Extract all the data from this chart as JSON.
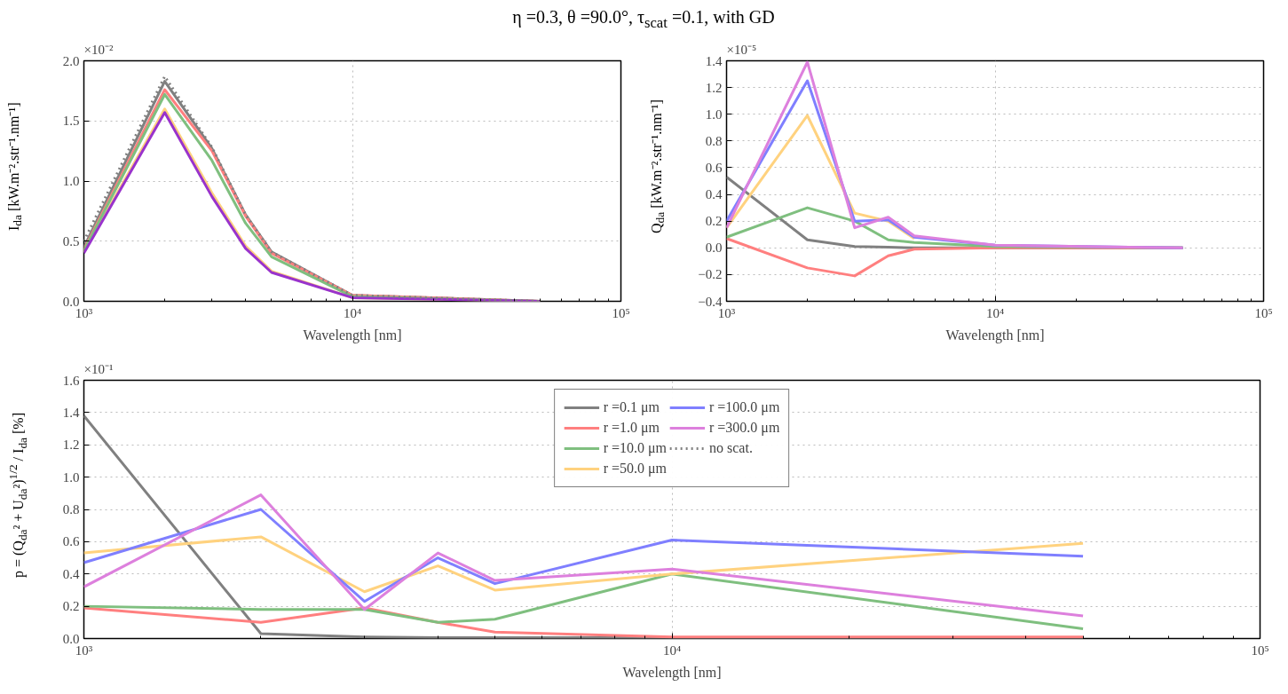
{
  "chart_data": [
    {
      "type": "line",
      "title": "η =0.3, θ =90.0°, τ$_{scat}$ =0.1, with GD",
      "xlabel": "Wavelength [nm]",
      "ylabel": "I$_{da}$ [kW.m⁻².str⁻¹.nm⁻¹]",
      "annotations": [
        "×10⁻²"
      ],
      "log": "x",
      "grid": true,
      "legend": false,
      "x": [
        1000,
        2000,
        3000,
        4000,
        5000,
        10000,
        50000
      ],
      "xlim": [
        1000,
        100000
      ],
      "xticks": [
        {
          "value": 1000,
          "label": "10³"
        },
        {
          "value": 2000,
          "label": null
        },
        {
          "value": 3000,
          "label": null
        },
        {
          "value": 4000,
          "label": null
        },
        {
          "value": 5000,
          "label": null
        },
        {
          "value": 6000,
          "label": null
        },
        {
          "value": 7000,
          "label": null
        },
        {
          "value": 8000,
          "label": null
        },
        {
          "value": 9000,
          "label": null
        },
        {
          "value": 10000,
          "label": "10⁴"
        },
        {
          "value": 20000,
          "label": null
        },
        {
          "value": 30000,
          "label": null
        },
        {
          "value": 40000,
          "label": null
        },
        {
          "value": 50000,
          "label": null
        },
        {
          "value": 60000,
          "label": null
        },
        {
          "value": 70000,
          "label": null
        },
        {
          "value": 80000,
          "label": null
        },
        {
          "value": 90000,
          "label": null
        },
        {
          "value": 100000,
          "label": "10⁵"
        }
      ],
      "ylim": [
        0,
        2
      ],
      "yticks": [
        {
          "value": 0,
          "label": "0.0"
        },
        {
          "value": 0.5,
          "label": "0.5"
        },
        {
          "value": 1,
          "label": "1.0"
        },
        {
          "value": 1.5,
          "label": "1.5"
        },
        {
          "value": 2,
          "label": "2.0"
        }
      ],
      "series": [
        {
          "color": "#ffd27f",
          "values": [
            0.41,
            1.6,
            0.9,
            0.46,
            0.25,
            0.03,
            0.0
          ]
        },
        {
          "color": "#7f7fff",
          "values": [
            null,
            null,
            null,
            null,
            null,
            null,
            null
          ]
        },
        {
          "color": "#808080",
          "values": [
            0.45,
            1.83,
            1.27,
            0.72,
            0.41,
            0.05,
            0.0
          ]
        },
        {
          "color": "#ff7f7f",
          "values": [
            0.43,
            1.76,
            1.25,
            0.71,
            0.4,
            0.05,
            0.0
          ]
        },
        {
          "color": "#7fbf7f",
          "values": [
            0.42,
            1.72,
            1.17,
            0.65,
            0.37,
            0.04,
            0.0
          ]
        },
        {
          "color": "#9933cc",
          "values": [
            0.4,
            1.57,
            0.87,
            0.44,
            0.24,
            0.03,
            0.0
          ]
        },
        {
          "color": "#808080",
          "line_style": "dotted",
          "values": [
            0.5,
            1.87,
            1.28,
            0.72,
            0.41,
            0.05,
            0.0
          ]
        }
      ]
    },
    {
      "type": "line",
      "xlabel": "Wavelength [nm]",
      "ylabel": "Q$_{da}$ [kW.m⁻².str⁻¹.nm⁻¹]",
      "annotations": [
        "×10⁻⁵"
      ],
      "log": "x",
      "grid": true,
      "legend": false,
      "x": [
        1000,
        2000,
        3000,
        4000,
        5000,
        10000,
        50000
      ],
      "xlim": [
        1000,
        100000
      ],
      "xticks": [
        {
          "value": 1000,
          "label": "10³"
        },
        {
          "value": 2000,
          "label": null
        },
        {
          "value": 3000,
          "label": null
        },
        {
          "value": 4000,
          "label": null
        },
        {
          "value": 5000,
          "label": null
        },
        {
          "value": 6000,
          "label": null
        },
        {
          "value": 7000,
          "label": null
        },
        {
          "value": 8000,
          "label": null
        },
        {
          "value": 9000,
          "label": null
        },
        {
          "value": 10000,
          "label": "10⁴"
        },
        {
          "value": 20000,
          "label": null
        },
        {
          "value": 30000,
          "label": null
        },
        {
          "value": 40000,
          "label": null
        },
        {
          "value": 50000,
          "label": null
        },
        {
          "value": 60000,
          "label": null
        },
        {
          "value": 70000,
          "label": null
        },
        {
          "value": 80000,
          "label": null
        },
        {
          "value": 90000,
          "label": null
        },
        {
          "value": 100000,
          "label": "10⁵"
        }
      ],
      "ylim": [
        -0.4,
        1.4
      ],
      "yticks": [
        {
          "value": -0.4,
          "label": "−0.4"
        },
        {
          "value": -0.2,
          "label": "−0.2"
        },
        {
          "value": 0,
          "label": "0.0"
        },
        {
          "value": 0.2,
          "label": "0.2"
        },
        {
          "value": 0.4,
          "label": "0.4"
        },
        {
          "value": 0.6,
          "label": "0.6"
        },
        {
          "value": 0.8,
          "label": "0.8"
        },
        {
          "value": 1,
          "label": "1.0"
        },
        {
          "value": 1.2,
          "label": "1.2"
        },
        {
          "value": 1.4,
          "label": "1.4"
        }
      ],
      "series": [
        {
          "color": "#808080",
          "values": [
            0.53,
            0.06,
            0.01,
            0.005,
            0.0,
            0.0,
            0.0
          ]
        },
        {
          "color": "#ff7f7f",
          "values": [
            0.07,
            -0.15,
            -0.21,
            -0.06,
            -0.01,
            0.0,
            0.0
          ]
        },
        {
          "color": "#7fbf7f",
          "values": [
            0.08,
            0.3,
            0.2,
            0.06,
            0.04,
            0.01,
            0.0
          ]
        },
        {
          "color": "#ffd27f",
          "values": [
            0.15,
            0.99,
            0.26,
            0.2,
            0.07,
            null,
            null
          ]
        },
        {
          "color": "#7f7fff",
          "values": [
            0.2,
            1.25,
            0.2,
            0.21,
            0.08,
            0.02,
            0.0
          ]
        },
        {
          "color": "#dd80dd",
          "values": [
            0.15,
            1.39,
            0.15,
            0.23,
            0.09,
            0.02,
            0.0
          ]
        }
      ]
    },
    {
      "type": "line",
      "xlabel": "Wavelength [nm]",
      "ylabel": "p = (Q$_{da}$² + U$_{da}$²)$^{1/2}$ / I$_{da}$ [%]",
      "annotations": [
        "×10⁻¹"
      ],
      "log": "x",
      "grid": true,
      "legend": "top",
      "x": [
        1000,
        2000,
        3000,
        4000,
        5000,
        10000,
        50000
      ],
      "xlim": [
        1000,
        100000
      ],
      "xticks": [
        {
          "value": 1000,
          "label": "10³"
        },
        {
          "value": 2000,
          "label": null
        },
        {
          "value": 3000,
          "label": null
        },
        {
          "value": 4000,
          "label": null
        },
        {
          "value": 5000,
          "label": null
        },
        {
          "value": 6000,
          "label": null
        },
        {
          "value": 7000,
          "label": null
        },
        {
          "value": 8000,
          "label": null
        },
        {
          "value": 9000,
          "label": null
        },
        {
          "value": 10000,
          "label": "10⁴"
        },
        {
          "value": 20000,
          "label": null
        },
        {
          "value": 30000,
          "label": null
        },
        {
          "value": 40000,
          "label": null
        },
        {
          "value": 50000,
          "label": null
        },
        {
          "value": 60000,
          "label": null
        },
        {
          "value": 70000,
          "label": null
        },
        {
          "value": 80000,
          "label": null
        },
        {
          "value": 90000,
          "label": null
        },
        {
          "value": 100000,
          "label": "10⁵"
        }
      ],
      "ylim": [
        0,
        1.6
      ],
      "yticks": [
        {
          "value": 0,
          "label": "0.0"
        },
        {
          "value": 0.2,
          "label": "0.2"
        },
        {
          "value": 0.4,
          "label": "0.4"
        },
        {
          "value": 0.6,
          "label": "0.6"
        },
        {
          "value": 0.8,
          "label": "0.8"
        },
        {
          "value": 1,
          "label": "1.0"
        },
        {
          "value": 1.2,
          "label": "1.2"
        },
        {
          "value": 1.4,
          "label": "1.4"
        },
        {
          "value": 1.6,
          "label": "1.6"
        }
      ],
      "series": [
        {
          "name": "r =0.1 μm",
          "color": "#808080",
          "values": [
            1.38,
            0.03,
            0.01,
            0.005,
            0.005,
            0.005,
            0.005
          ]
        },
        {
          "name": "r =1.0 μm",
          "color": "#ff7f7f",
          "values": [
            0.19,
            0.1,
            0.19,
            0.1,
            0.04,
            0.01,
            0.01
          ]
        },
        {
          "name": "r =10.0 μm",
          "color": "#7fbf7f",
          "values": [
            0.2,
            0.18,
            0.18,
            0.1,
            0.12,
            0.4,
            0.06
          ]
        },
        {
          "name": "r =50.0 μm",
          "color": "#ffd27f",
          "values": [
            0.53,
            0.63,
            0.29,
            0.45,
            0.3,
            0.4,
            0.59
          ]
        },
        {
          "name": "r =100.0 μm",
          "color": "#7f7fff",
          "values": [
            0.47,
            0.8,
            0.23,
            0.5,
            0.34,
            0.61,
            0.51
          ]
        },
        {
          "name": "r =300.0 μm",
          "color": "#dd80dd",
          "values": [
            0.32,
            0.89,
            0.18,
            0.53,
            0.36,
            0.43,
            0.14
          ]
        },
        {
          "name": "no scat.",
          "color": "#808080",
          "line_style": "dotted",
          "values": [
            null,
            null,
            null,
            null,
            null,
            null,
            null
          ]
        }
      ]
    }
  ]
}
